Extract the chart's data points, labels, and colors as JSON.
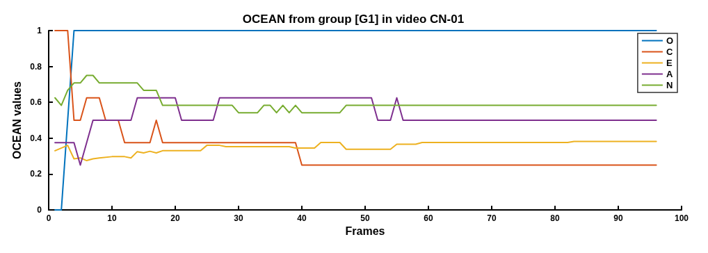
{
  "chart_data": {
    "type": "line",
    "title": "OCEAN from group [G1] in video CN-01",
    "xlabel": "Frames",
    "ylabel": "OCEAN values",
    "xlim": [
      0,
      100
    ],
    "xticks": [
      0,
      10,
      20,
      30,
      40,
      50,
      60,
      70,
      80,
      90,
      100
    ],
    "ylim": [
      0,
      1
    ],
    "yticks": [
      0,
      0.2,
      0.4,
      0.6,
      0.8,
      1
    ],
    "grid": false,
    "legend": "top right",
    "marker": "none",
    "line_style": "solid",
    "series": [
      {
        "name": "O",
        "color": "#0072bd",
        "x": [
          1,
          2,
          4,
          96
        ],
        "values": [
          0,
          0,
          1,
          1
        ]
      },
      {
        "name": "C",
        "color": "#d95319",
        "x": [
          1,
          3,
          4,
          5,
          6,
          8,
          9,
          11,
          12,
          16,
          17,
          18,
          39,
          40,
          96
        ],
        "values": [
          1,
          1,
          0.5,
          0.5,
          0.625,
          0.625,
          0.5,
          0.5,
          0.375,
          0.375,
          0.5,
          0.375,
          0.375,
          0.25,
          0.25
        ]
      },
      {
        "name": "E",
        "color": "#edb120",
        "x": [
          1,
          3,
          4,
          5,
          6,
          7,
          8,
          10,
          12,
          13,
          14,
          15,
          16,
          17,
          18,
          24,
          25,
          27,
          28,
          38,
          39,
          42,
          43,
          46,
          47,
          54,
          55,
          58,
          59,
          82,
          83,
          96
        ],
        "values": [
          0.33,
          0.36,
          0.285,
          0.29,
          0.275,
          0.285,
          0.29,
          0.297,
          0.297,
          0.29,
          0.325,
          0.318,
          0.327,
          0.318,
          0.33,
          0.33,
          0.36,
          0.36,
          0.353,
          0.353,
          0.345,
          0.345,
          0.376,
          0.376,
          0.338,
          0.338,
          0.366,
          0.366,
          0.376,
          0.376,
          0.382,
          0.382
        ]
      },
      {
        "name": "A",
        "color": "#7e2f8e",
        "x": [
          1,
          4,
          5,
          7,
          13,
          14,
          20,
          21,
          26,
          27,
          51,
          52,
          54,
          55,
          56,
          96
        ],
        "values": [
          0.375,
          0.375,
          0.25,
          0.5,
          0.5,
          0.625,
          0.625,
          0.5,
          0.5,
          0.625,
          0.625,
          0.5,
          0.5,
          0.625,
          0.5,
          0.5
        ]
      },
      {
        "name": "N",
        "color": "#77ac30",
        "x": [
          1,
          2,
          3,
          4,
          5,
          6,
          7,
          8,
          14,
          15,
          17,
          18,
          29,
          30,
          33,
          34,
          35,
          36,
          37,
          38,
          39,
          40,
          46,
          47,
          96
        ],
        "values": [
          0.625,
          0.583,
          0.667,
          0.708,
          0.708,
          0.75,
          0.75,
          0.708,
          0.708,
          0.667,
          0.667,
          0.583,
          0.583,
          0.542,
          0.542,
          0.583,
          0.583,
          0.542,
          0.583,
          0.542,
          0.583,
          0.542,
          0.542,
          0.583,
          0.583
        ]
      }
    ]
  }
}
